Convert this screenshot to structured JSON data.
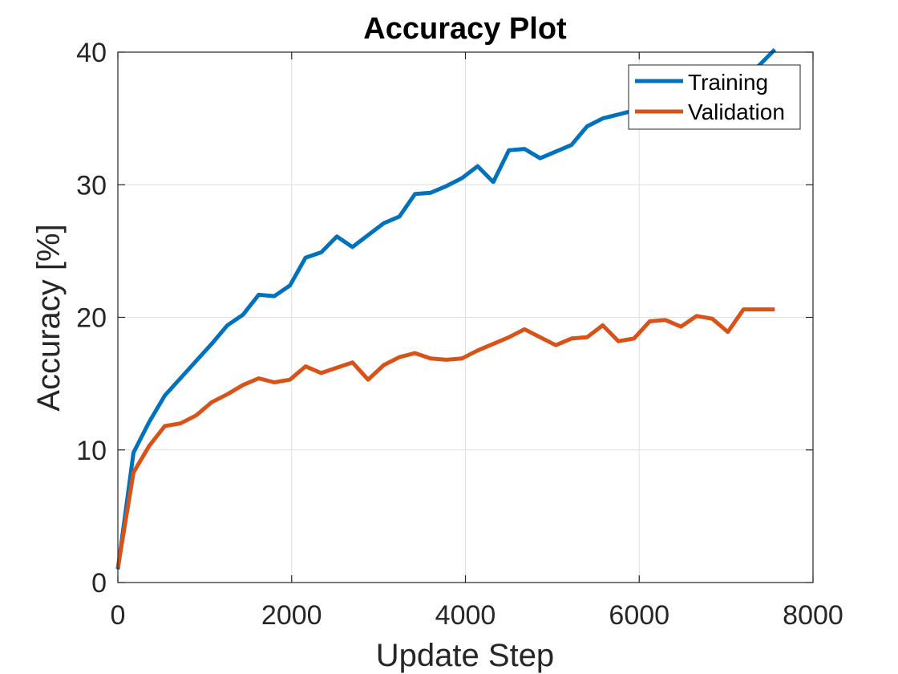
{
  "chart_data": {
    "type": "line",
    "title": "Accuracy Plot",
    "xlabel": "Update Step",
    "ylabel": "Accuracy [%]",
    "xlim": [
      0,
      8000
    ],
    "ylim": [
      0,
      40
    ],
    "xticks": [
      0,
      2000,
      4000,
      6000,
      8000
    ],
    "yticks": [
      0,
      10,
      20,
      30,
      40
    ],
    "grid": true,
    "legend_position": "top-right",
    "series": [
      {
        "name": "Training",
        "color": "#0072BD",
        "x": [
          0,
          180,
          360,
          540,
          720,
          900,
          1080,
          1260,
          1440,
          1620,
          1800,
          1980,
          2160,
          2340,
          2520,
          2700,
          2880,
          3060,
          3240,
          3420,
          3600,
          3780,
          3960,
          4140,
          4320,
          4500,
          4680,
          4860,
          5040,
          5220,
          5400,
          5580,
          5760,
          5940,
          6120,
          6300,
          6480,
          6660,
          6840,
          7020,
          7200,
          7380,
          7560
        ],
        "values": [
          1.0,
          9.8,
          12.1,
          14.1,
          15.4,
          16.7,
          18.0,
          19.4,
          20.2,
          21.7,
          21.6,
          22.4,
          24.5,
          24.9,
          26.1,
          25.3,
          26.2,
          27.1,
          27.6,
          29.3,
          29.4,
          29.9,
          30.5,
          31.4,
          30.2,
          32.6,
          32.7,
          32.0,
          32.5,
          33.0,
          34.4,
          35.0,
          35.3,
          35.6,
          35.6,
          35.9,
          36.3,
          36.7,
          37.3,
          37.8,
          38.3,
          39.0,
          40.2
        ]
      },
      {
        "name": "Validation",
        "color": "#D95319",
        "x": [
          0,
          180,
          360,
          540,
          720,
          900,
          1080,
          1260,
          1440,
          1620,
          1800,
          1980,
          2160,
          2340,
          2520,
          2700,
          2880,
          3060,
          3240,
          3420,
          3600,
          3780,
          3960,
          4140,
          4320,
          4500,
          4680,
          4860,
          5040,
          5220,
          5400,
          5580,
          5760,
          5940,
          6120,
          6300,
          6480,
          6660,
          6840,
          7020,
          7200,
          7380,
          7560
        ],
        "values": [
          1.1,
          8.3,
          10.3,
          11.8,
          12.0,
          12.6,
          13.6,
          14.2,
          14.9,
          15.4,
          15.1,
          15.3,
          16.3,
          15.8,
          16.2,
          16.6,
          15.3,
          16.4,
          17.0,
          17.3,
          16.9,
          16.8,
          16.9,
          17.5,
          18.0,
          18.5,
          19.1,
          18.5,
          17.9,
          18.4,
          18.5,
          19.4,
          18.2,
          18.4,
          19.7,
          19.8,
          19.3,
          20.1,
          19.9,
          18.9,
          20.6,
          20.6,
          20.6
        ]
      }
    ]
  }
}
